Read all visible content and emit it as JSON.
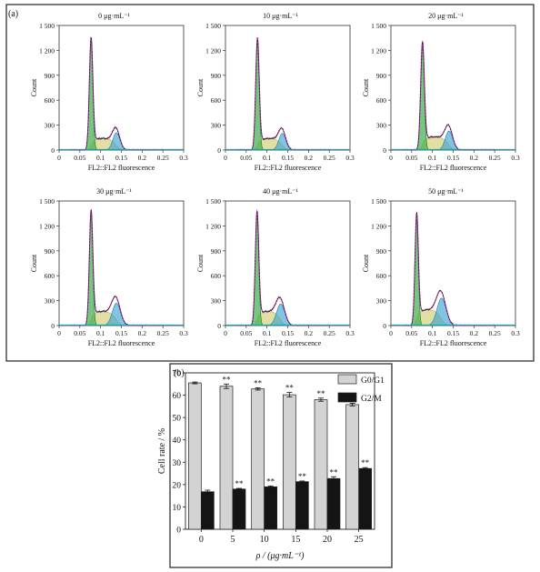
{
  "figure": {
    "panel_a_label": "(a)",
    "panel_b_label": "(b)"
  },
  "chart_data": [
    {
      "type": "area",
      "panel": "(a)",
      "title": "0 μg·mL⁻¹",
      "xlabel": "FL2::FL2 fluorescence",
      "ylabel": "Count",
      "xlim": [
        0,
        0.3
      ],
      "ylim": [
        0,
        1500
      ],
      "xticks": [
        "0",
        "0.05",
        "0.1",
        "0.15",
        "0.2",
        "0.25",
        "0.3"
      ],
      "yticks": [
        "0",
        "300",
        "600",
        "900",
        "1 200",
        "1 500"
      ],
      "peaks": {
        "g1_center": 0.077,
        "g1_height": 1300,
        "g1_width": 0.0042,
        "s_center": 0.105,
        "s_height": 140,
        "g2_center": 0.138,
        "g2_height": 210,
        "g2_width": 0.0085
      },
      "series": [
        {
          "name": "G0/G1",
          "color": "#3cae48"
        },
        {
          "name": "S",
          "color": "#c9c456"
        },
        {
          "name": "G2/M",
          "color": "#2e9fd0"
        }
      ]
    },
    {
      "type": "area",
      "panel": "(a)",
      "title": "10 μg·mL⁻¹",
      "xlabel": "FL2::FL2 fluorescence",
      "ylabel": "Count",
      "xlim": [
        0,
        0.3
      ],
      "ylim": [
        0,
        1500
      ],
      "xticks": [
        "0",
        "0.05",
        "0.1",
        "0.15",
        "0.2",
        "0.25",
        "0.3"
      ],
      "yticks": [
        "0",
        "300",
        "600",
        "900",
        "1 200",
        "1 500"
      ],
      "peaks": {
        "g1_center": 0.077,
        "g1_height": 1290,
        "g1_width": 0.0042,
        "s_center": 0.105,
        "s_height": 140,
        "g2_center": 0.137,
        "g2_height": 200,
        "g2_width": 0.0085
      },
      "series": [
        {
          "name": "G0/G1",
          "color": "#3cae48"
        },
        {
          "name": "S",
          "color": "#c9c456"
        },
        {
          "name": "G2/M",
          "color": "#2e9fd0"
        }
      ]
    },
    {
      "type": "area",
      "panel": "(a)",
      "title": "20 μg·mL⁻¹",
      "xlabel": "FL2::FL2 fluorescence",
      "ylabel": "Count",
      "xlim": [
        0,
        0.3
      ],
      "ylim": [
        0,
        1500
      ],
      "xticks": [
        "0",
        "0.05",
        "0.1",
        "0.15",
        "0.2",
        "0.25",
        "0.3"
      ],
      "yticks": [
        "0",
        "300",
        "600",
        "900",
        "1 200",
        "1 500"
      ],
      "peaks": {
        "g1_center": 0.076,
        "g1_height": 1240,
        "g1_width": 0.0044,
        "s_center": 0.105,
        "s_height": 160,
        "g2_center": 0.14,
        "g2_height": 230,
        "g2_width": 0.009
      },
      "series": [
        {
          "name": "G0/G1",
          "color": "#3cae48"
        },
        {
          "name": "S",
          "color": "#c9c456"
        },
        {
          "name": "G2/M",
          "color": "#2e9fd0"
        }
      ]
    },
    {
      "type": "area",
      "panel": "(a)",
      "title": "30 μg·mL⁻¹",
      "xlabel": "FL2::FL2 fluorescence",
      "ylabel": "Count",
      "xlim": [
        0,
        0.3
      ],
      "ylim": [
        0,
        1500
      ],
      "xticks": [
        "0",
        "0.05",
        "0.1",
        "0.15",
        "0.2",
        "0.25",
        "0.3"
      ],
      "yticks": [
        "0",
        "300",
        "600",
        "900",
        "1 200",
        "1 500"
      ],
      "peaks": {
        "g1_center": 0.077,
        "g1_height": 1320,
        "g1_width": 0.0042,
        "s_center": 0.105,
        "s_height": 170,
        "g2_center": 0.138,
        "g2_height": 270,
        "g2_width": 0.01
      },
      "series": [
        {
          "name": "G0/G1",
          "color": "#3cae48"
        },
        {
          "name": "S",
          "color": "#c9c456"
        },
        {
          "name": "G2/M",
          "color": "#2e9fd0"
        }
      ]
    },
    {
      "type": "area",
      "panel": "(a)",
      "title": "40 μg·mL⁻¹",
      "xlabel": "FL2::FL2 fluorescence",
      "ylabel": "Count",
      "xlim": [
        0,
        0.3
      ],
      "ylim": [
        0,
        1500
      ],
      "xticks": [
        "0",
        "0.05",
        "0.1",
        "0.15",
        "0.2",
        "0.25",
        "0.3"
      ],
      "yticks": [
        "0",
        "300",
        "600",
        "900",
        "1 200",
        "1 500"
      ],
      "peaks": {
        "g1_center": 0.076,
        "g1_height": 1310,
        "g1_width": 0.0042,
        "s_center": 0.103,
        "s_height": 170,
        "g2_center": 0.133,
        "g2_height": 260,
        "g2_width": 0.01
      },
      "series": [
        {
          "name": "G0/G1",
          "color": "#3cae48"
        },
        {
          "name": "S",
          "color": "#c9c456"
        },
        {
          "name": "G2/M",
          "color": "#2e9fd0"
        }
      ]
    },
    {
      "type": "area",
      "panel": "(a)",
      "title": "50 μg·mL⁻¹",
      "xlabel": "FL2::FL2 fluorescence",
      "ylabel": "Count",
      "xlim": [
        0,
        0.3
      ],
      "ylim": [
        0,
        1500
      ],
      "xticks": [
        "0",
        "0.05",
        "0.1",
        "0.15",
        "0.2",
        "0.25",
        "0.3"
      ],
      "yticks": [
        "0",
        "300",
        "600",
        "900",
        "1 200",
        "1 500"
      ],
      "peaks": {
        "g1_center": 0.062,
        "g1_height": 1280,
        "g1_width": 0.004,
        "s_center": 0.09,
        "s_height": 190,
        "g2_center": 0.122,
        "g2_height": 330,
        "g2_width": 0.011
      },
      "series": [
        {
          "name": "G0/G1",
          "color": "#3cae48"
        },
        {
          "name": "S",
          "color": "#c9c456"
        },
        {
          "name": "G2/M",
          "color": "#2e9fd0"
        }
      ]
    },
    {
      "type": "bar",
      "panel": "(b)",
      "categories": [
        "0",
        "5",
        "10",
        "15",
        "20",
        "25"
      ],
      "series": [
        {
          "name": "G0/G1",
          "values": [
            65.5,
            64.0,
            62.8,
            60.2,
            58.0,
            55.8
          ],
          "errors": [
            0.4,
            1.0,
            0.5,
            1.0,
            0.7,
            0.6
          ],
          "annotations": [
            "",
            "**",
            "**",
            "**",
            "**",
            "**"
          ],
          "color": "#d3d3d3"
        },
        {
          "name": "G2/M",
          "values": [
            16.8,
            18.0,
            19.0,
            21.3,
            22.7,
            27.2
          ],
          "errors": [
            0.7,
            0.3,
            0.4,
            0.3,
            0.8,
            0.4
          ],
          "annotations": [
            "",
            "**",
            "**",
            "**",
            "**",
            "**"
          ],
          "color": "#141414"
        }
      ],
      "xlabel": "ρ / (μg·mL⁻¹)",
      "ylabel": "Cell rate / %",
      "ylim": [
        0,
        70
      ],
      "yticks": [
        "0",
        "10",
        "20",
        "30",
        "40",
        "50",
        "60",
        "70"
      ],
      "legend": "top-right"
    }
  ]
}
